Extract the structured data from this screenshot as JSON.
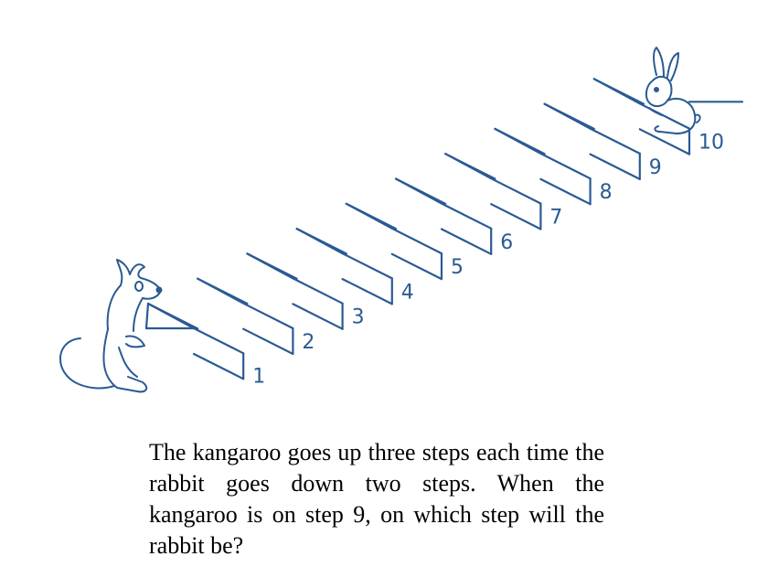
{
  "figure": {
    "step_numbers": [
      "1",
      "2",
      "3",
      "4",
      "5",
      "6",
      "7",
      "8",
      "9",
      "10"
    ],
    "line_color": "#2a5a94",
    "characters": {
      "bottom": "kangaroo",
      "top": "rabbit"
    }
  },
  "question": {
    "text": "The kangaroo goes up three steps each time the rabbit goes down two steps. When the kangaroo is on step 9, on which step will the rabbit be?"
  }
}
